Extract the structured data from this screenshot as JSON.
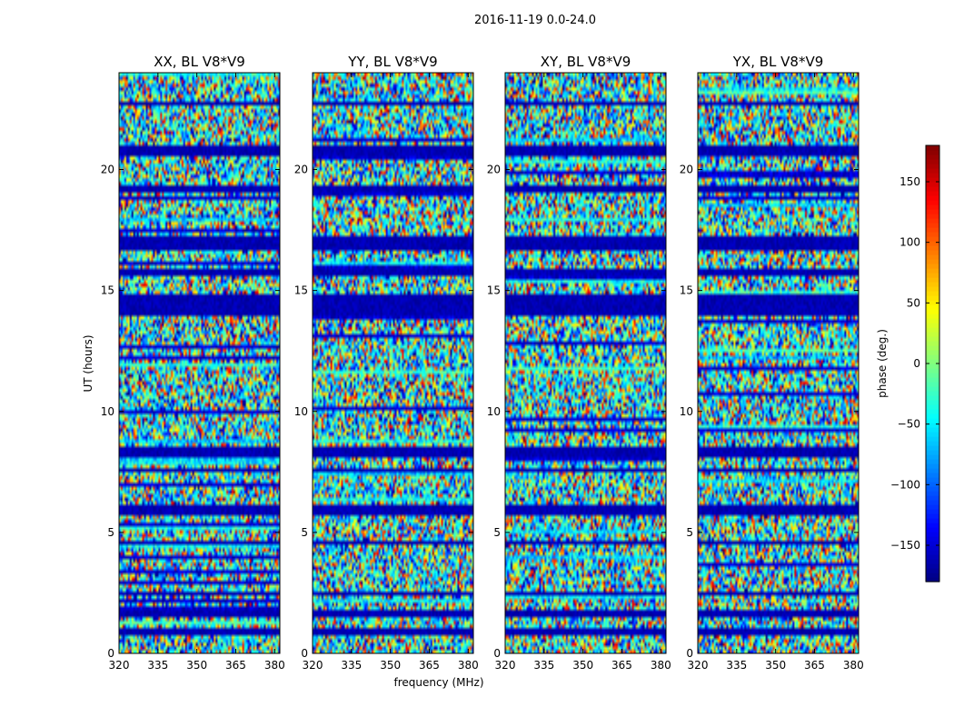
{
  "chart_data": {
    "type": "heatmap",
    "suptitle": "2016-11-19 0.0-24.0",
    "panels": [
      {
        "title": "XX, BL V8*V9",
        "seed": 11
      },
      {
        "title": "YY, BL V8*V9",
        "seed": 23
      },
      {
        "title": "XY, BL V8*V9",
        "seed": 37
      },
      {
        "title": "YX, BL V8*V9",
        "seed": 53
      }
    ],
    "xlabel": "frequency (MHz)",
    "ylabel": "UT (hours)",
    "xlim": [
      320,
      382
    ],
    "ylim": [
      0,
      24
    ],
    "xticks": [
      320,
      335,
      350,
      365,
      380
    ],
    "yticks": [
      0,
      5,
      10,
      15,
      20
    ],
    "colorbar": {
      "label": "phase (deg.)",
      "range": [
        -180,
        180
      ],
      "ticks": [
        -150,
        -100,
        -50,
        0,
        50,
        100,
        150
      ],
      "tick_labels": [
        "−150",
        "−100",
        "−50",
        "0",
        "50",
        "100",
        "150"
      ],
      "colormap": "jet"
    },
    "flagged_bands_hours": [
      [
        0.8,
        1.0
      ],
      [
        1.5,
        1.8
      ],
      [
        2.35,
        2.5
      ],
      [
        4.5,
        4.7
      ],
      [
        5.7,
        6.1
      ],
      [
        7.5,
        7.6
      ],
      [
        8.1,
        8.6
      ],
      [
        10.0,
        10.1
      ],
      [
        14.0,
        14.9
      ],
      [
        15.6,
        15.9
      ],
      [
        16.3,
        16.4
      ],
      [
        16.7,
        17.3
      ],
      [
        19.0,
        19.4
      ],
      [
        20.6,
        21.0
      ],
      [
        22.7,
        22.85
      ]
    ]
  }
}
